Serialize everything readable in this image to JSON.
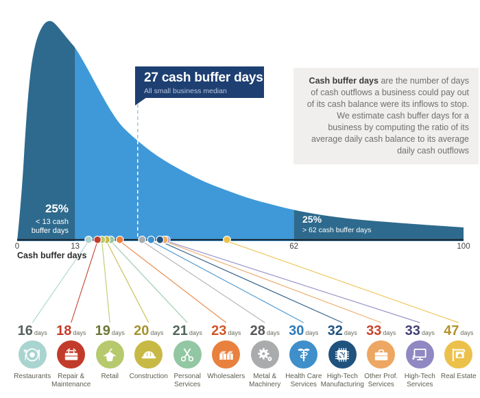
{
  "chart_data": {
    "type": "area",
    "title": "27 cash buffer days",
    "subtitle": "All small business median",
    "xlabel": "Cash buffer days",
    "x_range": [
      0,
      100
    ],
    "ticks": [
      0,
      13,
      62,
      100
    ],
    "median_days": 27,
    "left_tail": {
      "pct": "25%",
      "label": "< 13 cash buffer days",
      "threshold_days": 13
    },
    "right_tail": {
      "pct": "25%",
      "label": "> 62 cash buffer days",
      "threshold_days": 62
    },
    "colors": {
      "dark_fill": "#2e6a8d",
      "light_fill": "#3f99d8",
      "callout_bg": "#1d3f72",
      "axis": "#1d2d3a",
      "dash_over_white": "#a3c6e3",
      "dash_over_fill": "#ffffff"
    },
    "curve_points": [
      [
        0,
        0
      ],
      [
        1,
        0.2
      ],
      [
        2,
        0.55
      ],
      [
        3,
        0.78
      ],
      [
        4,
        0.89
      ],
      [
        5,
        0.95
      ],
      [
        6,
        0.985
      ],
      [
        7,
        1
      ],
      [
        8,
        0.995
      ],
      [
        9,
        0.975
      ],
      [
        10,
        0.95
      ],
      [
        11,
        0.925
      ],
      [
        12,
        0.9
      ],
      [
        13,
        0.878
      ],
      [
        15,
        0.81
      ],
      [
        17,
        0.735
      ],
      [
        19,
        0.66
      ],
      [
        21,
        0.59
      ],
      [
        23,
        0.53
      ],
      [
        25,
        0.49
      ],
      [
        27,
        0.455
      ],
      [
        30,
        0.405
      ],
      [
        33,
        0.365
      ],
      [
        36,
        0.33
      ],
      [
        40,
        0.287
      ],
      [
        44,
        0.252
      ],
      [
        48,
        0.222
      ],
      [
        52,
        0.193
      ],
      [
        57,
        0.166
      ],
      [
        62,
        0.141
      ],
      [
        68,
        0.118
      ],
      [
        75,
        0.1
      ],
      [
        82,
        0.088
      ],
      [
        90,
        0.076
      ],
      [
        100,
        0.062
      ]
    ],
    "industries": [
      {
        "id": "restaurants",
        "label_lines": [
          "Restaurants"
        ],
        "days": 16,
        "color": "#a9d4cf",
        "number_color": "#55625c",
        "icon": "plate-icon"
      },
      {
        "id": "repair-maintenance",
        "label_lines": [
          "Repair &",
          "Maintenance"
        ],
        "days": 18,
        "color": "#c23b2a",
        "number_color": "#c23b2a",
        "icon": "toolbox-icon"
      },
      {
        "id": "retail",
        "label_lines": [
          "Retail"
        ],
        "days": 19,
        "color": "#b6ca6d",
        "number_color": "#6d7635",
        "icon": "hanger-icon"
      },
      {
        "id": "construction",
        "label_lines": [
          "Construction"
        ],
        "days": 20,
        "color": "#c8b845",
        "number_color": "#a6922e",
        "icon": "hardhat-icon"
      },
      {
        "id": "personal-services",
        "label_lines": [
          "Personal",
          "Services"
        ],
        "days": 21,
        "color": "#92c7a3",
        "number_color": "#51675c",
        "icon": "scissors-icon"
      },
      {
        "id": "wholesalers",
        "label_lines": [
          "Wholesalers"
        ],
        "days": 23,
        "color": "#e8803e",
        "number_color": "#cf5426",
        "icon": "boxes-icon"
      },
      {
        "id": "metal-machinery",
        "label_lines": [
          "Metal &",
          "Machinery"
        ],
        "days": 28,
        "color": "#a9abad",
        "number_color": "#565656",
        "icon": "gear-icon"
      },
      {
        "id": "health-care-services",
        "label_lines": [
          "Health Care",
          "Services"
        ],
        "days": 30,
        "color": "#3f8fca",
        "number_color": "#2b7ab8",
        "icon": "caduceus-icon"
      },
      {
        "id": "hightech-manufacturing",
        "label_lines": [
          "High-Tech",
          "Manufacturing"
        ],
        "days": 32,
        "color": "#20527e",
        "number_color": "#20527e",
        "icon": "chip-icon"
      },
      {
        "id": "other-prof-services",
        "label_lines": [
          "Other Prof.",
          "Services"
        ],
        "days": 33,
        "color": "#eda763",
        "number_color": "#c8432a",
        "icon": "briefcase-icon"
      },
      {
        "id": "hightech-services",
        "label_lines": [
          "High-Tech",
          "Services"
        ],
        "days": 33,
        "color": "#8f88c2",
        "number_color": "#413f74",
        "icon": "monitor-icon"
      },
      {
        "id": "real-estate",
        "label_lines": [
          "Real Estate"
        ],
        "days": 47,
        "color": "#ecc14b",
        "number_color": "#b3912c",
        "icon": "house-sign-icon"
      }
    ]
  },
  "explainer": {
    "term": "Cash buffer days",
    "text": " are the number of days of cash outflows a business could pay out of its cash balance were its inflows to stop. We estimate cash buffer days for a business by computing the ratio of its average daily cash balance to its average daily cash outflows"
  },
  "days_suffix": "days"
}
